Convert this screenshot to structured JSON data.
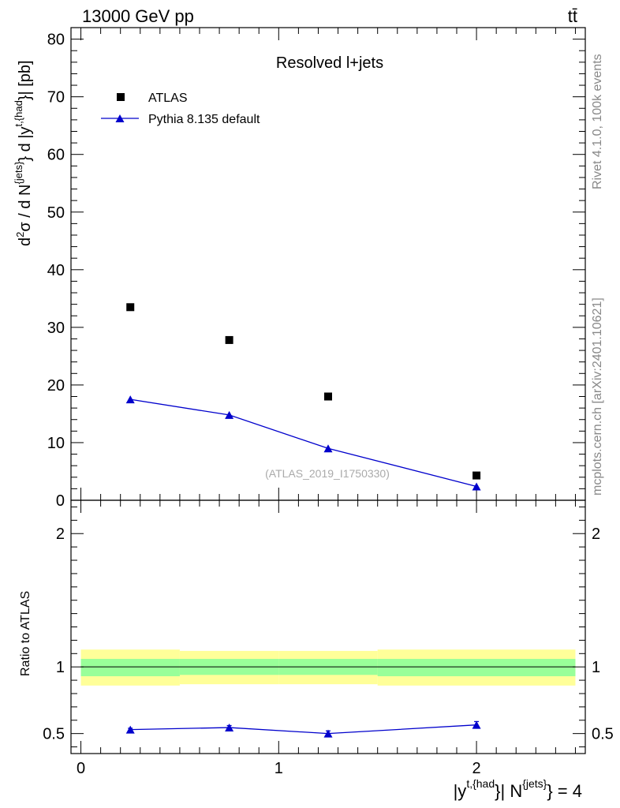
{
  "header": {
    "energy_label": "13000 GeV pp",
    "process_label": "tt̄"
  },
  "side_text": {
    "rivet": "Rivet 4.1.0,  100k events",
    "mcplots": "mcplots.cern.ch [arXiv:2401.10621]"
  },
  "chart_data": [
    {
      "type": "scatter",
      "title": "Resolved l+jets",
      "ylabel": "d²σ / d N{jets} d |y t,{had}| [pb]",
      "xlabel": "|y t,{had}| N{jets} = 4",
      "watermark": "(ATLAS_2019_I1750330)",
      "xlim": [
        -0.05,
        2.55
      ],
      "ylim": [
        0,
        82
      ],
      "yticks": [
        0,
        10,
        20,
        30,
        40,
        50,
        60,
        70,
        80
      ],
      "legend": [
        "ATLAS",
        "Pythia 8.135 default"
      ],
      "legend_position": "top-left",
      "series": [
        {
          "name": "ATLAS",
          "marker": "square",
          "color": "#000000",
          "x": [
            0.25,
            0.75,
            1.25,
            2.0
          ],
          "y": [
            33.5,
            27.8,
            18.0,
            4.3
          ]
        },
        {
          "name": "Pythia 8.135 default",
          "marker": "triangle",
          "color": "#0000cc",
          "x": [
            0.25,
            0.75,
            1.25,
            2.0
          ],
          "y": [
            17.5,
            14.8,
            9.0,
            2.4
          ]
        }
      ]
    },
    {
      "type": "line",
      "ylabel": "Ratio to ATLAS",
      "xlim": [
        -0.05,
        2.55
      ],
      "ylim": [
        0.35,
        2.25
      ],
      "yticks": [
        0.5,
        1,
        2
      ],
      "xticks": [
        0,
        1,
        2
      ],
      "bands": [
        {
          "name": "total uncertainty",
          "color": "#ffff99",
          "bins": [
            [
              0,
              0.5
            ],
            [
              0.5,
              1.0
            ],
            [
              1.0,
              1.5
            ],
            [
              1.5,
              2.5
            ]
          ],
          "low": [
            0.86,
            0.87,
            0.87,
            0.86
          ],
          "high": [
            1.13,
            1.12,
            1.12,
            1.13
          ]
        },
        {
          "name": "statistical uncertainty",
          "color": "#99ff99",
          "bins": [
            [
              0,
              0.5
            ],
            [
              0.5,
              1.0
            ],
            [
              1.0,
              1.5
            ],
            [
              1.5,
              2.5
            ]
          ],
          "low": [
            0.93,
            0.94,
            0.94,
            0.93
          ],
          "high": [
            1.06,
            1.06,
            1.06,
            1.06
          ]
        }
      ],
      "series": [
        {
          "name": "Pythia 8.135 default",
          "color": "#0000cc",
          "x": [
            0.25,
            0.75,
            1.25,
            2.0
          ],
          "y": [
            0.53,
            0.545,
            0.5,
            0.565
          ],
          "err": [
            0.01,
            0.015,
            0.02,
            0.025
          ]
        }
      ]
    }
  ]
}
